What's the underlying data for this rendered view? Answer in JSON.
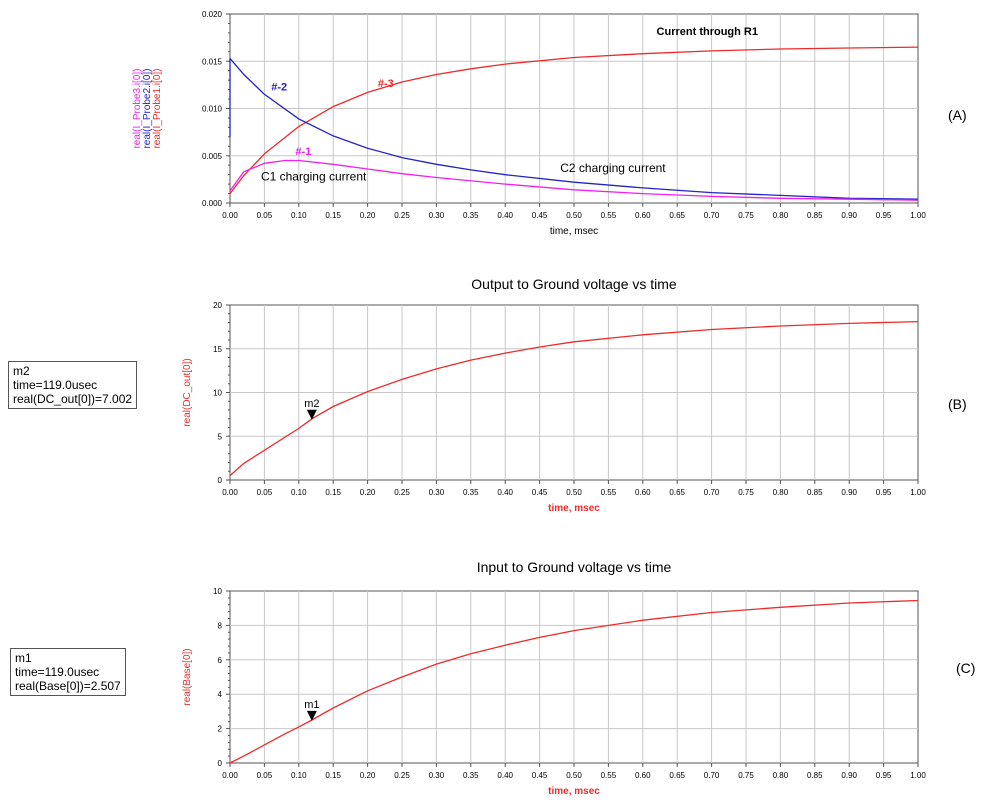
{
  "colors": {
    "red": "#ee2b2b",
    "blue": "#2323c8",
    "magenta": "#f020f0",
    "grid": "#c8c8c8",
    "axis": "#555555",
    "marker": "#000000"
  },
  "chart_data": [
    {
      "id": "A",
      "type": "line",
      "panel_label": "(A)",
      "title": "",
      "xlabel": "time, msec",
      "xlabel_color": "#000000",
      "ylabel_lines": [
        {
          "text": "real(I_Probe3.i[0])",
          "color": "#f020f0"
        },
        {
          "text": "real(I_Probe2.i[0])",
          "color": "#2323c8"
        },
        {
          "text": "real(I_Probe1.i[0])",
          "color": "#ee2b2b"
        }
      ],
      "xlim": [
        0,
        1
      ],
      "ylim": [
        0,
        0.02
      ],
      "xticks": [
        "0.00",
        "0.05",
        "0.10",
        "0.15",
        "0.20",
        "0.25",
        "0.30",
        "0.35",
        "0.40",
        "0.45",
        "0.50",
        "0.55",
        "0.60",
        "0.65",
        "0.70",
        "0.75",
        "0.80",
        "0.85",
        "0.90",
        "0.95",
        "1.00"
      ],
      "yticks": [
        "0.000",
        "0.005",
        "0.010",
        "0.015",
        "0.020"
      ],
      "grid": true,
      "series": [
        {
          "name": "real(I_Probe1.i[0])",
          "color": "#ee2b2b",
          "x": [
            0,
            0.02,
            0.05,
            0.1,
            0.15,
            0.2,
            0.25,
            0.3,
            0.35,
            0.4,
            0.5,
            0.6,
            0.7,
            0.8,
            0.9,
            1.0
          ],
          "y": [
            0.001,
            0.0029,
            0.0052,
            0.0081,
            0.0102,
            0.0117,
            0.0128,
            0.0136,
            0.0142,
            0.0147,
            0.0154,
            0.0158,
            0.0161,
            0.0163,
            0.0164,
            0.0165
          ]
        },
        {
          "name": "real(I_Probe2.i[0])",
          "color": "#2323c8",
          "x": [
            0,
            0.02,
            0.05,
            0.1,
            0.15,
            0.2,
            0.25,
            0.3,
            0.35,
            0.4,
            0.5,
            0.6,
            0.7,
            0.8,
            0.9,
            1.0
          ],
          "y": [
            0.0153,
            0.0136,
            0.0115,
            0.0089,
            0.0071,
            0.0058,
            0.0048,
            0.0041,
            0.0035,
            0.003,
            0.0022,
            0.0016,
            0.0011,
            0.0008,
            0.0005,
            0.0004
          ]
        },
        {
          "name": "real(I_Probe3.i[0])",
          "color": "#f020f0",
          "x": [
            0,
            0.02,
            0.05,
            0.08,
            0.1,
            0.15,
            0.2,
            0.25,
            0.3,
            0.4,
            0.5,
            0.6,
            0.7,
            0.8,
            0.9,
            1.0
          ],
          "y": [
            0.0013,
            0.0033,
            0.0042,
            0.0045,
            0.0045,
            0.0041,
            0.0036,
            0.0031,
            0.0027,
            0.002,
            0.0014,
            0.001,
            0.0007,
            0.0005,
            0.0004,
            0.0003
          ]
        }
      ],
      "annotations": [
        {
          "text": "Current through R1",
          "x": 0.62,
          "y": 0.0178,
          "color": "#000000",
          "bold": true
        },
        {
          "text": "#-3",
          "x": 0.215,
          "y": 0.0123,
          "color": "#ee2b2b",
          "bold": true
        },
        {
          "text": "#-2",
          "x": 0.06,
          "y": 0.0119,
          "color": "#2323c8",
          "bold": true
        },
        {
          "text": "#-1",
          "x": 0.095,
          "y": 0.0051,
          "color": "#f020f0",
          "bold": true
        },
        {
          "text": "C1 charging current",
          "x": 0.045,
          "y": 0.0024,
          "color": "#000000",
          "bold": false
        },
        {
          "text": "C2 charging current",
          "x": 0.48,
          "y": 0.0033,
          "color": "#000000",
          "bold": false
        }
      ]
    },
    {
      "id": "B",
      "type": "line",
      "panel_label": "(B)",
      "title": "Output to Ground voltage vs time",
      "xlabel": "time, msec",
      "xlabel_color": "#ee2b2b",
      "ylabel_lines": [
        {
          "text": "real(DC_out[0])",
          "color": "#ee2b2b"
        }
      ],
      "xlim": [
        0,
        1
      ],
      "ylim": [
        0,
        20
      ],
      "xticks": [
        "0.00",
        "0.05",
        "0.10",
        "0.15",
        "0.20",
        "0.25",
        "0.30",
        "0.35",
        "0.40",
        "0.45",
        "0.50",
        "0.55",
        "0.60",
        "0.65",
        "0.70",
        "0.75",
        "0.80",
        "0.85",
        "0.90",
        "0.95",
        "1.00"
      ],
      "yticks": [
        "0",
        "5",
        "10",
        "15",
        "20"
      ],
      "grid": true,
      "series": [
        {
          "color": "#ee2b2b",
          "x": [
            0,
            0.02,
            0.05,
            0.1,
            0.119,
            0.15,
            0.2,
            0.25,
            0.3,
            0.35,
            0.4,
            0.45,
            0.5,
            0.6,
            0.7,
            0.8,
            0.9,
            1.0
          ],
          "y": [
            0.5,
            1.9,
            3.4,
            5.9,
            7.0,
            8.4,
            10.1,
            11.5,
            12.7,
            13.7,
            14.5,
            15.2,
            15.8,
            16.6,
            17.2,
            17.6,
            17.9,
            18.1
          ]
        }
      ],
      "marker": {
        "name": "m2",
        "x": 0.119,
        "y": 7.0
      },
      "marker_box": {
        "lines": [
          "m2",
          "time=119.0usec",
          "real(DC_out[0])=7.002"
        ]
      }
    },
    {
      "id": "C",
      "type": "line",
      "panel_label": "(C)",
      "title": "Input to Ground voltage vs time",
      "xlabel": "time, msec",
      "xlabel_color": "#ee2b2b",
      "ylabel_lines": [
        {
          "text": "real(Base[0])",
          "color": "#ee2b2b"
        }
      ],
      "xlim": [
        0,
        1
      ],
      "ylim": [
        0,
        10
      ],
      "xticks": [
        "0.00",
        "0.05",
        "0.10",
        "0.15",
        "0.20",
        "0.25",
        "0.30",
        "0.35",
        "0.40",
        "0.45",
        "0.50",
        "0.55",
        "0.60",
        "0.65",
        "0.70",
        "0.75",
        "0.80",
        "0.85",
        "0.90",
        "0.95",
        "1.00"
      ],
      "yticks": [
        "0",
        "2",
        "4",
        "6",
        "8",
        "10"
      ],
      "grid": true,
      "series": [
        {
          "color": "#ee2b2b",
          "x": [
            0,
            0.02,
            0.05,
            0.08,
            0.1,
            0.119,
            0.15,
            0.2,
            0.25,
            0.3,
            0.35,
            0.4,
            0.45,
            0.5,
            0.6,
            0.7,
            0.8,
            0.9,
            1.0
          ],
          "y": [
            0.0,
            0.4,
            1.05,
            1.7,
            2.1,
            2.5,
            3.2,
            4.2,
            5.0,
            5.75,
            6.35,
            6.85,
            7.3,
            7.7,
            8.3,
            8.75,
            9.05,
            9.3,
            9.45
          ]
        }
      ],
      "marker": {
        "name": "m1",
        "x": 0.119,
        "y": 2.507
      },
      "marker_box": {
        "lines": [
          "m1",
          "time=119.0usec",
          "real(Base[0])=2.507"
        ]
      }
    }
  ]
}
